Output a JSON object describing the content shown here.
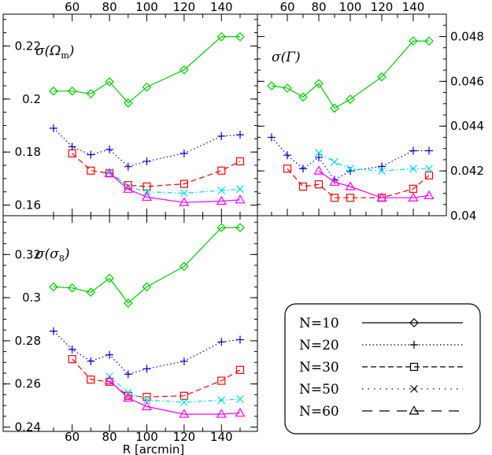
{
  "chart_data": {
    "type": "line",
    "xlabel": "R [arcmin]",
    "x": [
      50,
      60,
      70,
      80,
      90,
      100,
      120,
      140,
      150
    ],
    "x_top_ticks": [
      60,
      80,
      100,
      120,
      140
    ],
    "x_bottom_ticks": [
      60,
      80,
      100,
      120,
      140
    ],
    "xlim": [
      44,
      156
    ],
    "panels": [
      {
        "id": "omega",
        "label": "σ(Ωm)",
        "ylim": [
          0.156,
          0.232
        ],
        "yticks": [
          0.16,
          0.18,
          0.2,
          0.22
        ],
        "ytick_labels": [
          "0.16",
          "0.18",
          "0.2",
          "0.22"
        ],
        "ytick_side": "left",
        "series": [
          {
            "name": "N=10",
            "x": [
              50,
              60,
              70,
              80,
              90,
              100,
              120,
              140,
              150
            ],
            "values": [
              0.203,
              0.203,
              0.202,
              0.2065,
              0.1985,
              0.2045,
              0.211,
              0.2235,
              0.2235
            ]
          },
          {
            "name": "N=20",
            "x": [
              50,
              60,
              70,
              80,
              90,
              100,
              120,
              140,
              150
            ],
            "values": [
              0.189,
              0.182,
              0.179,
              0.181,
              0.1745,
              0.1765,
              0.1795,
              0.186,
              0.1865
            ]
          },
          {
            "name": "N=30",
            "x": [
              60,
              70,
              80,
              90,
              100,
              120,
              140,
              150
            ],
            "values": [
              0.1795,
              0.173,
              0.172,
              0.1675,
              0.167,
              0.168,
              0.173,
              0.1765
            ]
          },
          {
            "name": "N=50",
            "x": [
              80,
              90,
              100,
              120,
              140,
              150
            ],
            "values": [
              0.1725,
              0.167,
              0.165,
              0.1645,
              0.1655,
              0.166
            ]
          },
          {
            "name": "N=60",
            "x": [
              80,
              90,
              100,
              120,
              140,
              150
            ],
            "values": [
              0.172,
              0.166,
              0.163,
              0.161,
              0.1615,
              0.162
            ]
          }
        ]
      },
      {
        "id": "gamma",
        "label": "σ(Γ)",
        "ylim": [
          0.04,
          0.049
        ],
        "yticks": [
          0.04,
          0.042,
          0.044,
          0.046,
          0.048
        ],
        "ytick_labels": [
          "0.04",
          "0.042",
          "0.044",
          "0.046",
          "0.048"
        ],
        "ytick_side": "right",
        "series": [
          {
            "name": "N=10",
            "x": [
              50,
              60,
              70,
              80,
              90,
              100,
              120,
              140,
              150
            ],
            "values": [
              0.0458,
              0.0457,
              0.0453,
              0.0459,
              0.0448,
              0.0452,
              0.0462,
              0.0478,
              0.0478
            ]
          },
          {
            "name": "N=20",
            "x": [
              50,
              60,
              70,
              80,
              90,
              100,
              120,
              140,
              150
            ],
            "values": [
              0.0435,
              0.0427,
              0.0421,
              0.0426,
              0.0416,
              0.042,
              0.0422,
              0.0429,
              0.0429
            ]
          },
          {
            "name": "N=30",
            "x": [
              60,
              70,
              80,
              90,
              100,
              120,
              140,
              150
            ],
            "values": [
              0.0421,
              0.0413,
              0.0414,
              0.0408,
              0.0408,
              0.0408,
              0.0412,
              0.0418
            ]
          },
          {
            "name": "N=50",
            "x": [
              80,
              90,
              100,
              120,
              140,
              150
            ],
            "values": [
              0.0428,
              0.0424,
              0.0421,
              0.042,
              0.0421,
              0.0421
            ]
          },
          {
            "name": "N=60",
            "x": [
              80,
              90,
              100,
              120,
              140,
              150
            ],
            "values": [
              0.042,
              0.0415,
              0.0413,
              0.0408,
              0.0408,
              0.0409
            ]
          }
        ]
      },
      {
        "id": "sigma8",
        "label": "σ(σ8)",
        "ylim": [
          0.238,
          0.338
        ],
        "yticks": [
          0.24,
          0.26,
          0.28,
          0.3,
          0.32
        ],
        "ytick_labels": [
          "0.24",
          "0.26",
          "0.28",
          "0.3",
          "0.32"
        ],
        "ytick_side": "left",
        "series": [
          {
            "name": "N=10",
            "x": [
              50,
              60,
              70,
              80,
              90,
              100,
              120,
              140,
              150
            ],
            "values": [
              0.305,
              0.3045,
              0.3025,
              0.309,
              0.2975,
              0.305,
              0.3145,
              0.3325,
              0.3325
            ]
          },
          {
            "name": "N=20",
            "x": [
              50,
              60,
              70,
              80,
              90,
              100,
              120,
              140,
              150
            ],
            "values": [
              0.2845,
              0.276,
              0.2705,
              0.2735,
              0.2645,
              0.267,
              0.2705,
              0.2795,
              0.2805
            ]
          },
          {
            "name": "N=30",
            "x": [
              60,
              70,
              80,
              90,
              100,
              120,
              140,
              150
            ],
            "values": [
              0.2715,
              0.262,
              0.261,
              0.2545,
              0.254,
              0.2545,
              0.2615,
              0.2665
            ]
          },
          {
            "name": "N=50",
            "x": [
              80,
              90,
              100,
              120,
              140,
              150
            ],
            "values": [
              0.2635,
              0.256,
              0.2525,
              0.2515,
              0.2525,
              0.253
            ]
          },
          {
            "name": "N=60",
            "x": [
              80,
              90,
              100,
              120,
              140,
              150
            ],
            "values": [
              0.2615,
              0.2535,
              0.2495,
              0.246,
              0.246,
              0.2465
            ]
          }
        ]
      }
    ],
    "legend": [
      {
        "label": "N=10",
        "color": "#000000",
        "dash": "solid",
        "marker": "diamond"
      },
      {
        "label": "N=20",
        "color": "#000000",
        "dash": "dotted",
        "marker": "plus"
      },
      {
        "label": "N=30",
        "color": "#000000",
        "dash": "dashed",
        "marker": "square"
      },
      {
        "label": "N=50",
        "color": "#000000",
        "dash": "dotdot",
        "marker": "cross"
      },
      {
        "label": "N=60",
        "color": "#000000",
        "dash": "longdash",
        "marker": "triangle"
      }
    ],
    "legend_placement": "bottom-right",
    "series_styles": {
      "N=10": {
        "color": "#00cc00",
        "dash": "solid",
        "marker": "diamond"
      },
      "N=20": {
        "color": "#0000cc",
        "dash": "dotted",
        "marker": "plus"
      },
      "N=30": {
        "color": "#ff0000",
        "dash": "dashed",
        "marker": "square"
      },
      "N=50": {
        "color": "#00dddd",
        "dash": "dashdot",
        "marker": "cross"
      },
      "N=60": {
        "color": "#ff00ff",
        "dash": "solid",
        "marker": "triangle"
      }
    }
  }
}
